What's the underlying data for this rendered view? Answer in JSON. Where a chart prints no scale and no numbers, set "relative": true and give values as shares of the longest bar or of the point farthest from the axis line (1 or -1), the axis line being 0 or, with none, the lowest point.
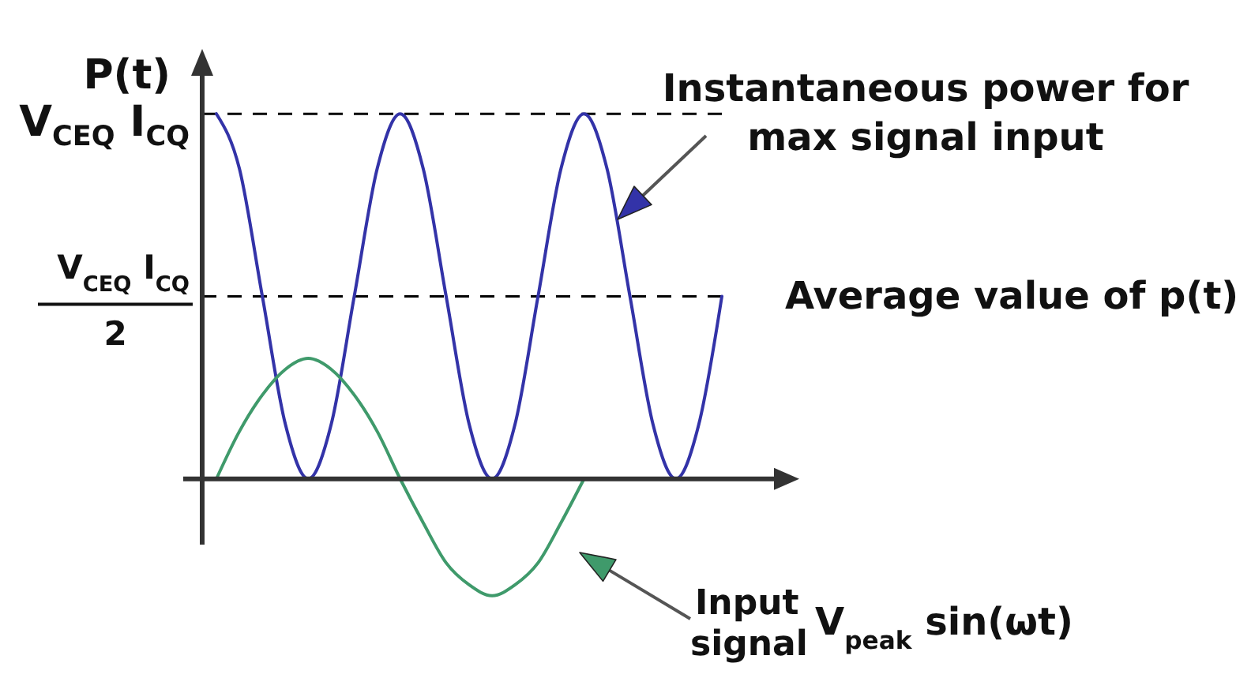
{
  "chart_data": {
    "type": "line",
    "ylabel": "P(t)",
    "relative": true,
    "categories": [
      null,
      null,
      null,
      null,
      null,
      null,
      null,
      null,
      null,
      null,
      null,
      null,
      null,
      null,
      null,
      null,
      null,
      null,
      null,
      null,
      null,
      null,
      null
    ],
    "series": [
      {
        "color": "#3333a8",
        "values": [
          1,
          0.85,
          0.5,
          0.15,
          0,
          0.15,
          0.5,
          0.85,
          1,
          0.85,
          0.5,
          0.15,
          0,
          0.15,
          0.5,
          0.85,
          1,
          0.85,
          0.5,
          0.15,
          0,
          0.15,
          0.5
        ]
      },
      {
        "color": "#3f9a6b",
        "values": [
          0,
          0.13,
          0.23,
          0.3,
          0.33,
          0.3,
          0.23,
          0.13,
          0,
          -0.12,
          -0.23,
          -0.29,
          -0.32,
          -0.29,
          -0.23,
          -0.12,
          0,
          null,
          null,
          null,
          null,
          null,
          null
        ]
      }
    ],
    "annotations": [
      "V$_{CEQ}$ I$_{CQ}$",
      "Instantaneous power for max signal input",
      "V$_{CEQ}$ I$_{CQ}$\n2",
      "Input signal V$_{peak}$ sin(ωt)"
    ],
    "ref_lines": [
      {
        "axis": "y",
        "value": 1,
        "color": "#000000",
        "line_style": "dashed"
      },
      {
        "axis": "y",
        "value": 0.5,
        "label": "Average value of p(t)",
        "color": "#000000",
        "line_style": "dashed"
      }
    ],
    "marker": "none",
    "line_style": "solid"
  }
}
